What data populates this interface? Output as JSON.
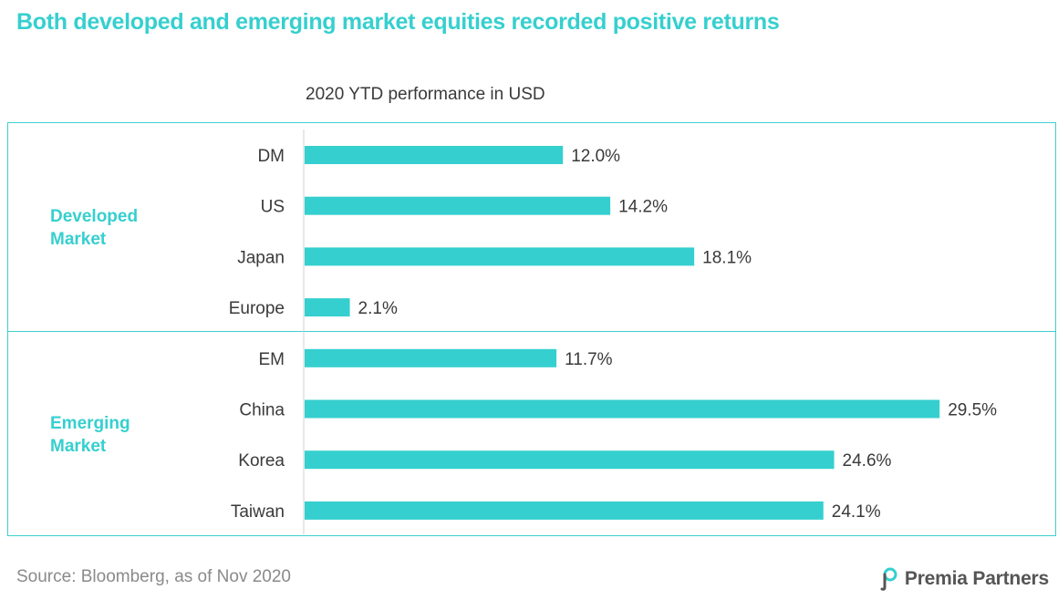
{
  "headline": "Both developed and emerging market equities recorded positive returns",
  "chart_data": {
    "type": "bar",
    "orientation": "horizontal",
    "title": "2020 YTD performance in USD",
    "categories": [
      "DM",
      "US",
      "Japan",
      "Europe",
      "EM",
      "China",
      "Korea",
      "Taiwan"
    ],
    "values": [
      12.0,
      14.2,
      18.1,
      2.1,
      11.7,
      29.5,
      24.6,
      24.1
    ],
    "value_labels": [
      "12.0%",
      "14.2%",
      "18.1%",
      "2.1%",
      "11.7%",
      "29.5%",
      "24.6%",
      "24.1%"
    ],
    "groups": [
      {
        "name": "Developed\nMarket",
        "categories": [
          "DM",
          "US",
          "Japan",
          "Europe"
        ]
      },
      {
        "name": "Emerging\nMarket",
        "categories": [
          "EM",
          "China",
          "Korea",
          "Taiwan"
        ]
      }
    ],
    "xlim": [
      0,
      32
    ],
    "grid": false,
    "bar_color": "#36cfcf"
  },
  "source": "Source: Bloomberg, as of Nov 2020",
  "logo": {
    "text": "Premia Partners",
    "icon": "premia-logo-icon"
  },
  "colors": {
    "accent": "#36cfcf",
    "text": "#3a3a3a",
    "muted": "#8a8a8a"
  }
}
